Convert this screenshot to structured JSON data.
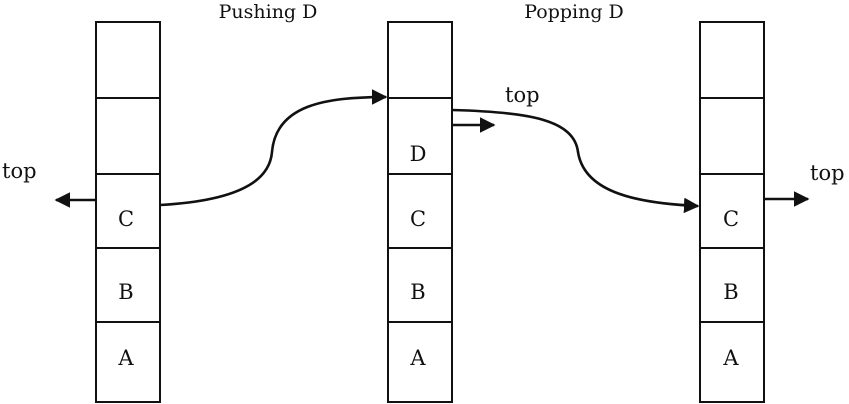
{
  "diagram": {
    "titles": {
      "pushing": "Pushing D",
      "popping": "Popping D"
    },
    "stacks": [
      {
        "name": "initial",
        "cells": [
          "",
          "",
          "C",
          "B",
          "A"
        ]
      },
      {
        "name": "after-push",
        "cells": [
          "",
          "D",
          "C",
          "B",
          "A"
        ]
      },
      {
        "name": "after-pop",
        "cells": [
          "",
          "",
          "C",
          "B",
          "A"
        ]
      }
    ],
    "top_labels": {
      "left": "top",
      "middle": "top",
      "right": "top"
    },
    "colors": {
      "ink": "#111111",
      "background": "#ffffff"
    }
  }
}
